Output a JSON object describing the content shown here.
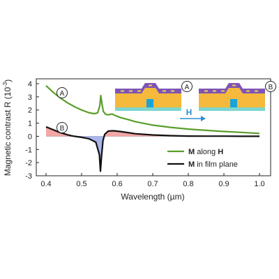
{
  "chart_data": {
    "type": "line",
    "xlabel": "Wavelength (µm)",
    "ylabel_main": "Magnetic contrast R (10",
    "ylabel_sup": "-3",
    "ylabel_close": ")",
    "xlim": [
      0.4,
      1.0
    ],
    "ylim": [
      -3,
      4
    ],
    "x_ticks": [
      0.4,
      0.5,
      0.6,
      0.7,
      0.8,
      0.9,
      1.0
    ],
    "x_tick_labels": [
      "0.4",
      "0.5",
      "0.6",
      "0.7",
      "0.8",
      "0.9",
      "1.0"
    ],
    "y_ticks": [
      -3,
      -2,
      -1,
      0,
      1,
      2,
      3,
      4
    ],
    "y_tick_labels": [
      "-3",
      "-2",
      "-1",
      "0",
      "1",
      "2",
      "3",
      "4"
    ],
    "grid": false,
    "legend_position": "bottom-right",
    "series": [
      {
        "id": "A",
        "label_bold": "M",
        "label_mid": " along ",
        "label_bold2": "H",
        "marker": "A",
        "color": "#5a9e2a",
        "points": [
          [
            0.4,
            3.85
          ],
          [
            0.42,
            3.35
          ],
          [
            0.44,
            2.92
          ],
          [
            0.46,
            2.55
          ],
          [
            0.48,
            2.25
          ],
          [
            0.5,
            2.0
          ],
          [
            0.52,
            1.8
          ],
          [
            0.535,
            1.72
          ],
          [
            0.545,
            1.78
          ],
          [
            0.551,
            2.3
          ],
          [
            0.554,
            3.1
          ],
          [
            0.557,
            2.5
          ],
          [
            0.561,
            1.9
          ],
          [
            0.567,
            1.68
          ],
          [
            0.575,
            1.63
          ],
          [
            0.585,
            1.7
          ],
          [
            0.595,
            1.58
          ],
          [
            0.61,
            1.42
          ],
          [
            0.63,
            1.28
          ],
          [
            0.65,
            1.12
          ],
          [
            0.7,
            0.85
          ],
          [
            0.75,
            0.68
          ],
          [
            0.8,
            0.55
          ],
          [
            0.85,
            0.45
          ],
          [
            0.9,
            0.37
          ],
          [
            0.95,
            0.3
          ],
          [
            1.0,
            0.22
          ]
        ]
      },
      {
        "id": "B",
        "label_bold": "M",
        "label_mid": " in film plane",
        "label_bold2": "",
        "marker": "B",
        "color": "#111111",
        "points": [
          [
            0.4,
            0.72
          ],
          [
            0.42,
            0.5
          ],
          [
            0.44,
            0.28
          ],
          [
            0.46,
            0.12
          ],
          [
            0.47,
            0.05
          ],
          [
            0.48,
            0.0
          ],
          [
            0.5,
            -0.08
          ],
          [
            0.52,
            -0.18
          ],
          [
            0.54,
            -0.45
          ],
          [
            0.55,
            -1.4
          ],
          [
            0.553,
            -2.65
          ],
          [
            0.556,
            -1.5
          ],
          [
            0.56,
            -0.35
          ],
          [
            0.565,
            0.15
          ],
          [
            0.575,
            0.4
          ],
          [
            0.59,
            0.42
          ],
          [
            0.61,
            0.36
          ],
          [
            0.63,
            0.28
          ],
          [
            0.65,
            0.2
          ],
          [
            0.7,
            0.1
          ],
          [
            0.75,
            0.05
          ],
          [
            0.8,
            0.02
          ],
          [
            0.85,
            0.01
          ],
          [
            0.9,
            0.01
          ],
          [
            0.95,
            0.0
          ],
          [
            1.0,
            0.0
          ]
        ]
      }
    ],
    "shading": {
      "positive_color": "#f2a6a6",
      "negative_color": "#a9b6ec",
      "series": "B"
    },
    "insets": [
      {
        "marker": "A"
      },
      {
        "marker": "B"
      }
    ],
    "arrow_label": "H",
    "arrow_color": "#2b8fd6"
  }
}
